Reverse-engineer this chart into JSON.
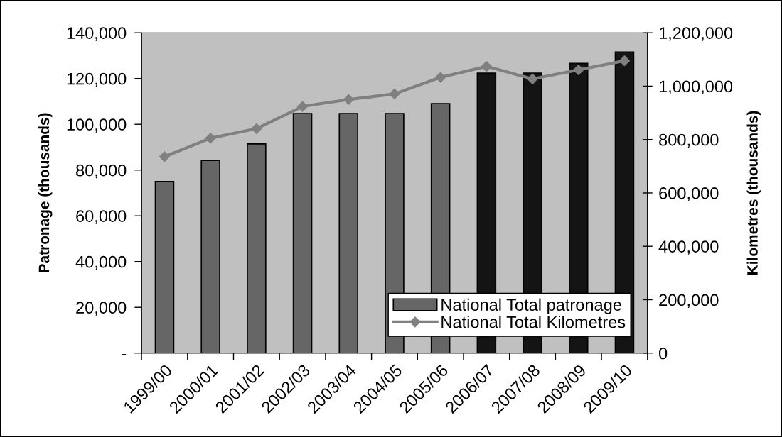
{
  "chart_data": {
    "type": "bar",
    "categories": [
      "1999/00",
      "2000/01",
      "2001/02",
      "2002/03",
      "2003/04",
      "2004/05",
      "2005/06",
      "2006/07",
      "2007/08",
      "2008/09",
      "2009/10"
    ],
    "series": [
      {
        "name": "National Total patronage",
        "colors": [
          "#666666",
          "#666666",
          "#666666",
          "#666666",
          "#666666",
          "#666666",
          "#666666",
          "#141414",
          "#141414",
          "#141414",
          "#141414"
        ],
        "values": [
          75000,
          84200,
          91400,
          104700,
          104700,
          104700,
          109000,
          122400,
          122400,
          126600,
          131600
        ]
      },
      {
        "name": "National Total Kilometres",
        "type": "line",
        "axis": "y2",
        "color": "#808080",
        "marker": "diamond",
        "values": [
          736000,
          805000,
          841000,
          924000,
          950000,
          971000,
          1033000,
          1074000,
          1027000,
          1061000,
          1095000
        ]
      }
    ],
    "ylabel": "Patronage (thousands)",
    "y2label": "Kilometres (thousands)",
    "ylim": [
      0,
      140000
    ],
    "yticks": [
      {
        "value": 0,
        "label": "-"
      },
      {
        "value": 20000,
        "label": "20,000"
      },
      {
        "value": 40000,
        "label": "40,000"
      },
      {
        "value": 60000,
        "label": "60,000"
      },
      {
        "value": 80000,
        "label": "80,000"
      },
      {
        "value": 100000,
        "label": "100,000"
      },
      {
        "value": 120000,
        "label": "120,000"
      },
      {
        "value": 140000,
        "label": "140,000"
      }
    ],
    "y2lim": [
      0,
      1200000
    ],
    "y2ticks": [
      0,
      {
        "value": 200000,
        "label": "200,000"
      },
      {
        "value": 400000,
        "label": "400,000"
      },
      {
        "value": 600000,
        "label": "600,000"
      },
      {
        "value": 800000,
        "label": "800,000"
      },
      {
        "value": 1000000,
        "label": "1,000,000"
      },
      {
        "value": 1200000,
        "label": "1,200,000"
      }
    ],
    "legend": "bottom right",
    "grid": false
  }
}
